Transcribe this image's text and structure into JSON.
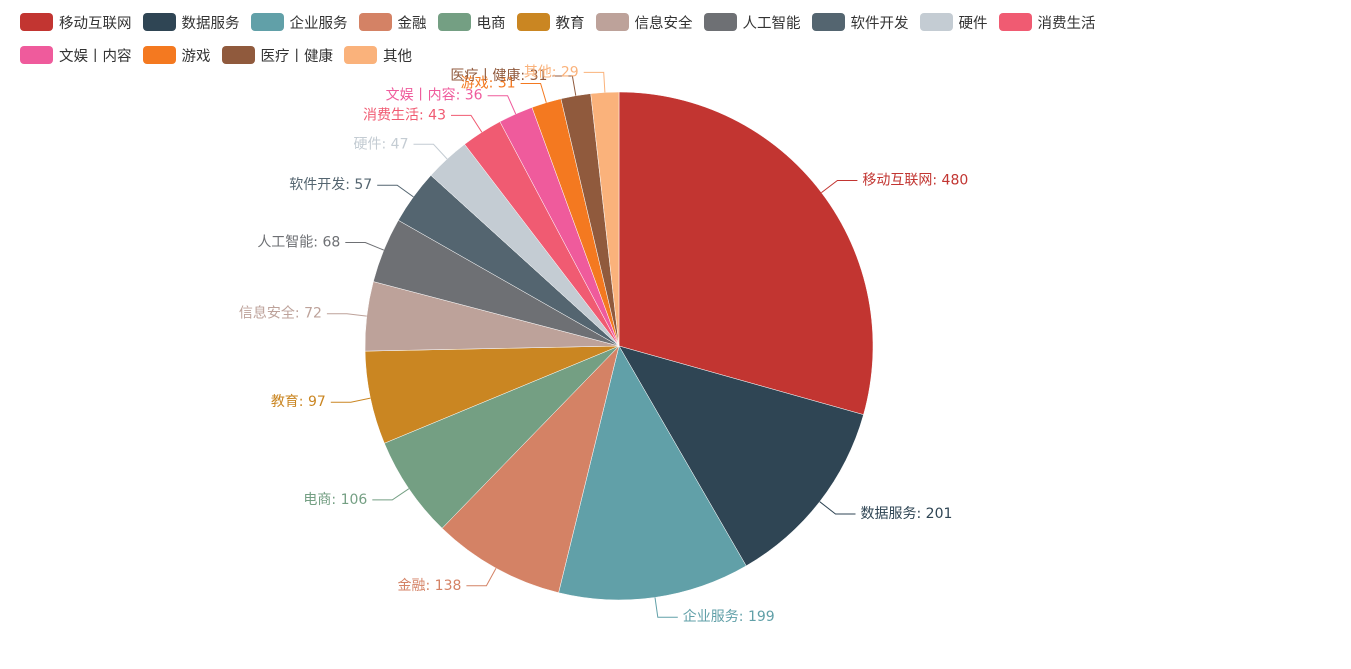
{
  "chart_data": {
    "type": "pie",
    "title": "",
    "legend_position": "top-left",
    "label_format": "name: value",
    "slices": [
      {
        "name": "移动互联网",
        "value": 480,
        "color": "#c23531"
      },
      {
        "name": "数据服务",
        "value": 201,
        "color": "#2f4554"
      },
      {
        "name": "企业服务",
        "value": 199,
        "color": "#61a0a8"
      },
      {
        "name": "金融",
        "value": 138,
        "color": "#d48265"
      },
      {
        "name": "电商",
        "value": 106,
        "color": "#749f83"
      },
      {
        "name": "教育",
        "value": 97,
        "color": "#ca8622"
      },
      {
        "name": "信息安全",
        "value": 72,
        "color": "#bda29a"
      },
      {
        "name": "人工智能",
        "value": 68,
        "color": "#6e7074"
      },
      {
        "name": "软件开发",
        "value": 57,
        "color": "#546570"
      },
      {
        "name": "硬件",
        "value": 47,
        "color": "#c4ccd3"
      },
      {
        "name": "消费生活",
        "value": 43,
        "color": "#f05b72"
      },
      {
        "name": "文娱丨内容",
        "value": 36,
        "color": "#ef5b9c"
      },
      {
        "name": "游戏",
        "value": 31,
        "color": "#f47920"
      },
      {
        "name": "医疗丨健康",
        "value": 31,
        "color": "#905a3d"
      },
      {
        "name": "其他",
        "value": 29,
        "color": "#fab27b"
      }
    ]
  }
}
